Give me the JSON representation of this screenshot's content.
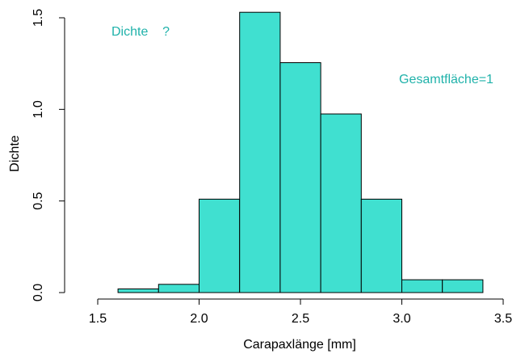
{
  "chart_data": {
    "type": "bar",
    "title": "",
    "xlabel": "Carapaxlänge [mm]",
    "ylabel": "Dichte",
    "xlim": [
      1.5,
      3.5
    ],
    "ylim": [
      0.0,
      1.5
    ],
    "x_ticks": [
      "1.5",
      "2.0",
      "2.5",
      "3.0",
      "3.5"
    ],
    "y_ticks": [
      "0.0",
      "0.5",
      "1.0",
      "1.5"
    ],
    "grid": false,
    "bins": [
      {
        "from": 1.6,
        "to": 1.8,
        "density": 0.02
      },
      {
        "from": 1.8,
        "to": 2.0,
        "density": 0.045
      },
      {
        "from": 2.0,
        "to": 2.2,
        "density": 0.51
      },
      {
        "from": 2.2,
        "to": 2.4,
        "density": 1.53
      },
      {
        "from": 2.4,
        "to": 2.6,
        "density": 1.255
      },
      {
        "from": 2.6,
        "to": 2.8,
        "density": 0.975
      },
      {
        "from": 2.8,
        "to": 3.0,
        "density": 0.51
      },
      {
        "from": 3.0,
        "to": 3.2,
        "density": 0.07
      },
      {
        "from": 3.2,
        "to": 3.4,
        "density": 0.07
      }
    ],
    "annotations": [
      {
        "text": "Dichte    ?",
        "position": "top-left"
      },
      {
        "text": "Gesamtfläche=1",
        "position": "right"
      }
    ],
    "colors": {
      "bar_fill": "#40E0D0",
      "bar_stroke": "#000000",
      "annotation": "#20B2AA"
    }
  }
}
